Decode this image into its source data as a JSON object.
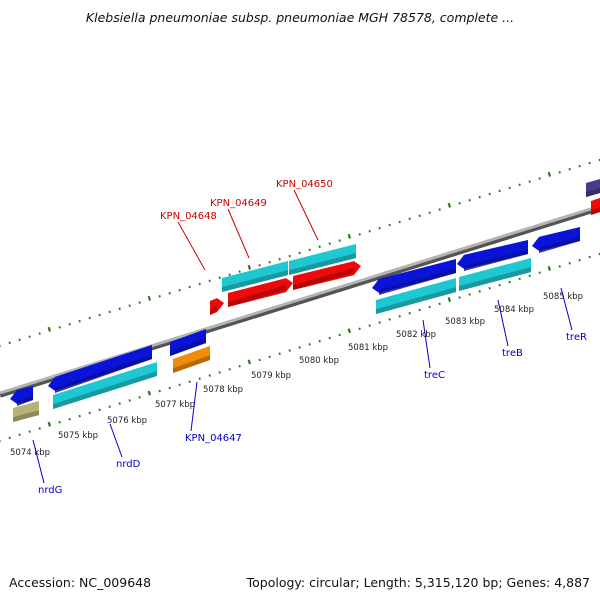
{
  "title": "Klebsiella pneumoniae subsp. pneumoniae MGH 78578, complete ...",
  "footer": {
    "accession": "Accession: NC_009648",
    "summary": "Topology: circular; Length: 5,315,120 bp; Genes: 4,887"
  },
  "colors": {
    "backbone": "#777777",
    "tick": "#2a7a1a",
    "scale_label": "#222222",
    "gene_label_blue": "#0000cc",
    "gene_label_red": "#cc0000",
    "blue": "#0a14d8",
    "cyan": "#1ec8d2",
    "red": "#ee0a0a",
    "orange": "#f08c0a",
    "olive": "#b4b478",
    "purple": "#4a3a8c"
  },
  "scale_labels": [
    "5074 kbp",
    "5075 kbp",
    "5076 kbp",
    "5077 kbp",
    "5078 kbp",
    "5079 kbp",
    "5080 kbp",
    "5081 kbp",
    "5082 kbp",
    "5083 kbp",
    "5084 kbp",
    "5085 kbp"
  ],
  "gene_labels": [
    {
      "name": "nrdG",
      "color": "blue"
    },
    {
      "name": "nrdD",
      "color": "blue"
    },
    {
      "name": "KPN_04647",
      "color": "blue"
    },
    {
      "name": "treC",
      "color": "blue"
    },
    {
      "name": "treB",
      "color": "blue"
    },
    {
      "name": "treR",
      "color": "blue"
    },
    {
      "name": "KPN_04648",
      "color": "red"
    },
    {
      "name": "KPN_04649",
      "color": "red"
    },
    {
      "name": "KPN_04650",
      "color": "red"
    }
  ],
  "features": [
    {
      "name": "gene-nrdG",
      "color": "blue",
      "dir": "left"
    },
    {
      "name": "cds-nrdG",
      "color": "olive",
      "dir": "none"
    },
    {
      "name": "gene-nrdD",
      "color": "blue",
      "dir": "left"
    },
    {
      "name": "cds-nrdD",
      "color": "cyan",
      "dir": "none"
    },
    {
      "name": "gene-KPN_04647",
      "color": "blue",
      "dir": "none"
    },
    {
      "name": "cds-KPN_04647",
      "color": "orange",
      "dir": "none"
    },
    {
      "name": "gene-KPN_04648",
      "color": "red",
      "dir": "right"
    },
    {
      "name": "gene-KPN_04649",
      "color": "red",
      "dir": "right"
    },
    {
      "name": "cds-KPN_04649",
      "color": "cyan",
      "dir": "none"
    },
    {
      "name": "gene-KPN_04650",
      "color": "red",
      "dir": "right"
    },
    {
      "name": "cds-KPN_04650",
      "color": "cyan",
      "dir": "none"
    },
    {
      "name": "gene-treC",
      "color": "blue",
      "dir": "left"
    },
    {
      "name": "cds-treC",
      "color": "cyan",
      "dir": "none"
    },
    {
      "name": "gene-treB",
      "color": "blue",
      "dir": "left"
    },
    {
      "name": "cds-treB",
      "color": "cyan",
      "dir": "none"
    },
    {
      "name": "gene-treR",
      "color": "blue",
      "dir": "left"
    },
    {
      "name": "gene-edge-purple",
      "color": "purple",
      "dir": "none"
    },
    {
      "name": "gene-edge-red",
      "color": "red",
      "dir": "none"
    }
  ]
}
